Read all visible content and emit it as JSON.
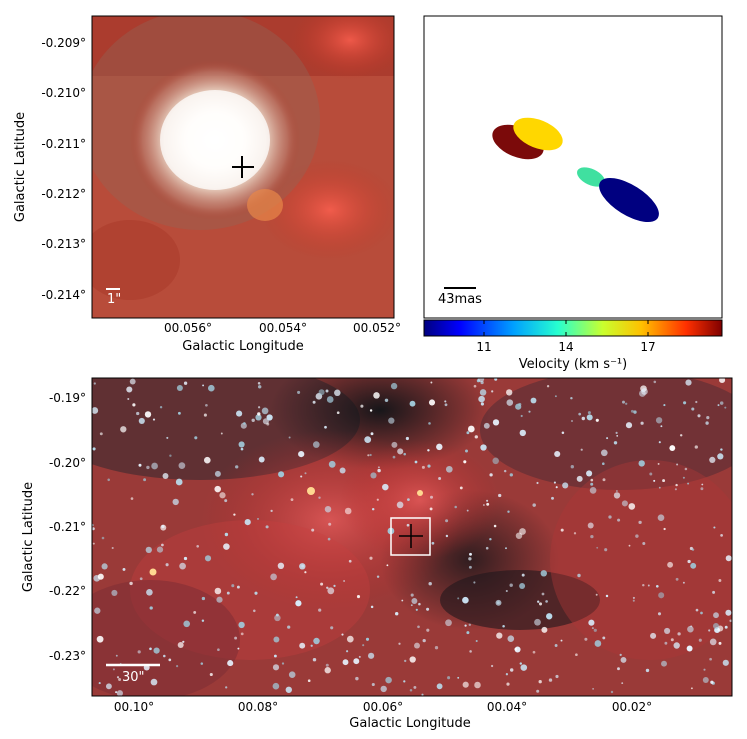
{
  "top_left": {
    "ylabel": "Galactic Latitude",
    "xlabel": "Galactic Longitude",
    "yticks": [
      "-0.209°",
      "-0.210°",
      "-0.211°",
      "-0.212°",
      "-0.213°",
      "-0.214°"
    ],
    "xticks": [
      "00.056°",
      "00.054°",
      "00.052°"
    ],
    "scalebar": "1\""
  },
  "top_right": {
    "scalebar": "43mas",
    "colorbar": {
      "label": "Velocity (km s⁻¹)",
      "ticks": [
        "11",
        "14",
        "17"
      ],
      "colors": [
        "#00007f",
        "#0000ff",
        "#00a0ff",
        "#27ffcf",
        "#c9ff2e",
        "#ffc000",
        "#ff3000",
        "#7f0000"
      ]
    },
    "spots": [
      {
        "color": "#7b0a0a",
        "velocity_desc": "dark red"
      },
      {
        "color": "#ffd700",
        "velocity_desc": "yellow"
      },
      {
        "color": "#40e0a0",
        "velocity_desc": "cyan-green"
      },
      {
        "color": "#000080",
        "velocity_desc": "navy"
      }
    ]
  },
  "bottom": {
    "ylabel": "Galactic Latitude",
    "xlabel": "Galactic Longitude",
    "yticks": [
      "-0.19°",
      "-0.20°",
      "-0.21°",
      "-0.22°",
      "-0.23°"
    ],
    "xticks": [
      "00.10°",
      "00.08°",
      "00.06°",
      "00.04°",
      "00.02°"
    ],
    "scalebar": "30\""
  }
}
